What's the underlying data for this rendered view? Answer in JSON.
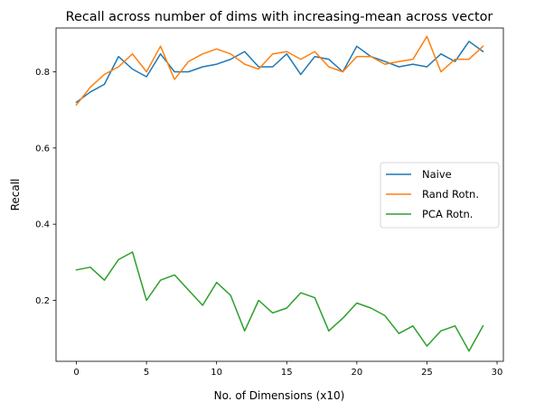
{
  "chart_data": {
    "type": "line",
    "title": "Recall across number of dims with increasing-mean across vector",
    "xlabel": "No. of Dimensions (x10)",
    "ylabel": "Recall",
    "xlim": [
      -1.45,
      30.45
    ],
    "ylim": [
      0.04,
      0.915
    ],
    "xticks": [
      0,
      5,
      10,
      15,
      20,
      25,
      30
    ],
    "xtick_labels": [
      "0",
      "5",
      "10",
      "15",
      "20",
      "25",
      "30"
    ],
    "yticks": [
      0.2,
      0.4,
      0.6,
      0.8
    ],
    "ytick_labels": [
      "0.2",
      "0.4",
      "0.6",
      "0.8"
    ],
    "grid": false,
    "legend_position": "center-right",
    "x": [
      0,
      1,
      2,
      3,
      4,
      5,
      6,
      7,
      8,
      9,
      10,
      11,
      12,
      13,
      14,
      15,
      16,
      17,
      18,
      19,
      20,
      21,
      22,
      23,
      24,
      25,
      26,
      27,
      28,
      29
    ],
    "series": [
      {
        "name": "Naive",
        "color": "#1f77b4",
        "values": [
          0.72,
          0.747,
          0.767,
          0.84,
          0.807,
          0.787,
          0.847,
          0.8,
          0.8,
          0.813,
          0.82,
          0.833,
          0.853,
          0.813,
          0.813,
          0.847,
          0.793,
          0.84,
          0.833,
          0.8,
          0.867,
          0.84,
          0.827,
          0.813,
          0.82,
          0.813,
          0.847,
          0.827,
          0.88,
          0.853
        ]
      },
      {
        "name": "Rand Rotn.",
        "color": "#ff7f0e",
        "values": [
          0.713,
          0.76,
          0.793,
          0.813,
          0.847,
          0.8,
          0.867,
          0.78,
          0.827,
          0.847,
          0.86,
          0.847,
          0.82,
          0.807,
          0.847,
          0.853,
          0.833,
          0.853,
          0.813,
          0.8,
          0.84,
          0.84,
          0.82,
          0.827,
          0.833,
          0.893,
          0.8,
          0.833,
          0.833,
          0.867
        ]
      },
      {
        "name": "PCA Rotn.",
        "color": "#2ca02c",
        "values": [
          0.28,
          0.287,
          0.253,
          0.307,
          0.327,
          0.2,
          0.253,
          0.267,
          0.227,
          0.187,
          0.247,
          0.213,
          0.12,
          0.2,
          0.167,
          0.18,
          0.22,
          0.207,
          0.12,
          0.153,
          0.193,
          0.18,
          0.16,
          0.113,
          0.133,
          0.08,
          0.12,
          0.133,
          0.067,
          0.133
        ]
      }
    ]
  }
}
